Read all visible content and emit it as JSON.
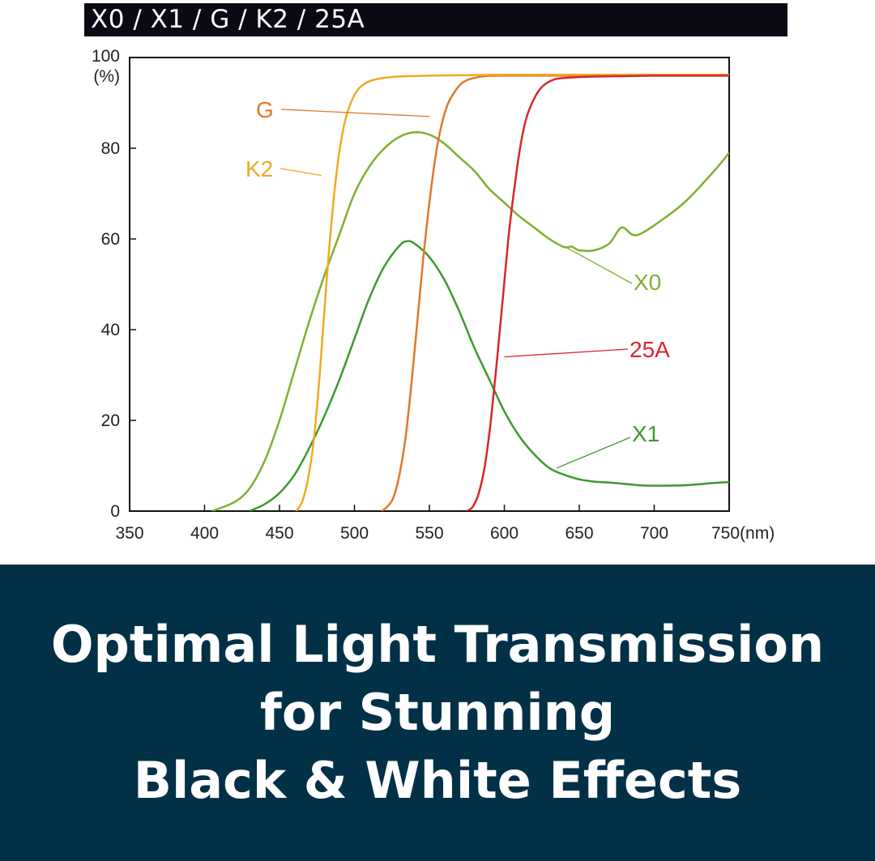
{
  "header": {
    "title": "X0 / X1 / G / K2 / 25A"
  },
  "banner": {
    "lines": [
      "Optimal Light Transmission",
      "for Stunning",
      "Black & White Effects"
    ]
  },
  "chart_data": {
    "type": "line",
    "title": "X0 / X1 / G / K2 / 25A",
    "xlabel": "(nm)",
    "ylabel": "(%)",
    "xlim": [
      350,
      750
    ],
    "ylim": [
      0,
      100
    ],
    "x_ticks": [
      350,
      400,
      450,
      500,
      550,
      600,
      650,
      700,
      750
    ],
    "y_ticks": [
      0,
      20,
      40,
      60,
      80,
      100
    ],
    "x_tick_labels": [
      "350",
      "400",
      "450",
      "500",
      "550",
      "600",
      "650",
      "700",
      "750(nm)"
    ],
    "y_tick_labels": [
      "0",
      "20",
      "40",
      "60",
      "80",
      "100"
    ],
    "y_unit_label": "(%)",
    "grid": false,
    "legend": "inline labels",
    "series": [
      {
        "name": "X0",
        "color": "#7fb030",
        "points": [
          [
            405,
            0
          ],
          [
            420,
            2
          ],
          [
            430,
            5
          ],
          [
            440,
            11
          ],
          [
            450,
            20
          ],
          [
            460,
            31
          ],
          [
            470,
            42
          ],
          [
            480,
            52
          ],
          [
            490,
            61
          ],
          [
            500,
            70
          ],
          [
            510,
            76
          ],
          [
            520,
            80
          ],
          [
            530,
            82.5
          ],
          [
            540,
            83.5
          ],
          [
            550,
            83
          ],
          [
            560,
            81
          ],
          [
            570,
            78
          ],
          [
            580,
            75
          ],
          [
            590,
            71
          ],
          [
            600,
            68
          ],
          [
            610,
            65
          ],
          [
            620,
            62.5
          ],
          [
            630,
            60
          ],
          [
            640,
            58.2
          ],
          [
            645,
            58.3
          ],
          [
            650,
            57.5
          ],
          [
            660,
            57.5
          ],
          [
            670,
            59
          ],
          [
            678,
            62.5
          ],
          [
            685,
            61
          ],
          [
            690,
            61
          ],
          [
            700,
            63
          ],
          [
            720,
            68
          ],
          [
            740,
            75
          ],
          [
            750,
            79
          ]
        ]
      },
      {
        "name": "X1",
        "color": "#3c9a2e",
        "points": [
          [
            430,
            0
          ],
          [
            440,
            1.5
          ],
          [
            450,
            4
          ],
          [
            460,
            8
          ],
          [
            470,
            14
          ],
          [
            480,
            21
          ],
          [
            490,
            29
          ],
          [
            500,
            38
          ],
          [
            510,
            47
          ],
          [
            520,
            54
          ],
          [
            530,
            58.5
          ],
          [
            535,
            59.5
          ],
          [
            540,
            59
          ],
          [
            550,
            56
          ],
          [
            560,
            51
          ],
          [
            570,
            44
          ],
          [
            580,
            36
          ],
          [
            590,
            29
          ],
          [
            600,
            22
          ],
          [
            610,
            16.5
          ],
          [
            620,
            12.5
          ],
          [
            630,
            9.5
          ],
          [
            640,
            8
          ],
          [
            650,
            7
          ],
          [
            660,
            6.5
          ],
          [
            670,
            6.3
          ],
          [
            680,
            6
          ],
          [
            690,
            5.7
          ],
          [
            700,
            5.6
          ],
          [
            720,
            5.7
          ],
          [
            740,
            6.2
          ],
          [
            750,
            6.4
          ]
        ]
      },
      {
        "name": "G",
        "color": "#e07828",
        "points": [
          [
            518,
            0
          ],
          [
            522,
            1
          ],
          [
            526,
            3
          ],
          [
            530,
            8
          ],
          [
            534,
            16
          ],
          [
            538,
            28
          ],
          [
            542,
            42
          ],
          [
            546,
            56
          ],
          [
            550,
            68
          ],
          [
            554,
            78
          ],
          [
            558,
            85
          ],
          [
            562,
            89.5
          ],
          [
            566,
            92
          ],
          [
            570,
            93.8
          ],
          [
            575,
            95
          ],
          [
            585,
            95.8
          ],
          [
            600,
            96
          ],
          [
            650,
            96
          ],
          [
            700,
            96
          ],
          [
            750,
            96
          ]
        ]
      },
      {
        "name": "K2",
        "color": "#f0aa22",
        "points": [
          [
            461,
            0
          ],
          [
            465,
            2
          ],
          [
            469,
            7
          ],
          [
            473,
            16
          ],
          [
            477,
            31
          ],
          [
            481,
            49
          ],
          [
            485,
            65
          ],
          [
            489,
            77
          ],
          [
            493,
            85
          ],
          [
            497,
            89.5
          ],
          [
            501,
            92.3
          ],
          [
            505,
            93.8
          ],
          [
            512,
            95
          ],
          [
            525,
            95.7
          ],
          [
            550,
            96
          ],
          [
            600,
            96.2
          ],
          [
            650,
            96.2
          ],
          [
            700,
            96.2
          ],
          [
            750,
            96.2
          ]
        ]
      },
      {
        "name": "25A",
        "color": "#d8262e",
        "points": [
          [
            575,
            0
          ],
          [
            579,
            1
          ],
          [
            583,
            4
          ],
          [
            587,
            10
          ],
          [
            591,
            20
          ],
          [
            595,
            33
          ],
          [
            599,
            47
          ],
          [
            603,
            61
          ],
          [
            607,
            72
          ],
          [
            611,
            81
          ],
          [
            615,
            87
          ],
          [
            620,
            91
          ],
          [
            625,
            93.5
          ],
          [
            632,
            95
          ],
          [
            640,
            95.5
          ],
          [
            660,
            95.8
          ],
          [
            700,
            96
          ],
          [
            750,
            96
          ]
        ]
      }
    ],
    "annotations": [
      {
        "label": "G",
        "color": "#e07828",
        "anchor": [
          550,
          87
        ]
      },
      {
        "label": "K2",
        "color": "#f0aa22",
        "anchor": [
          478,
          74
        ]
      },
      {
        "label": "X0",
        "color": "#7fb030",
        "anchor": [
          642,
          58
        ]
      },
      {
        "label": "25A",
        "color": "#d8262e",
        "anchor": [
          600,
          34
        ]
      },
      {
        "label": "X1",
        "color": "#3c9a2e",
        "anchor": [
          635,
          9.5
        ]
      }
    ]
  }
}
